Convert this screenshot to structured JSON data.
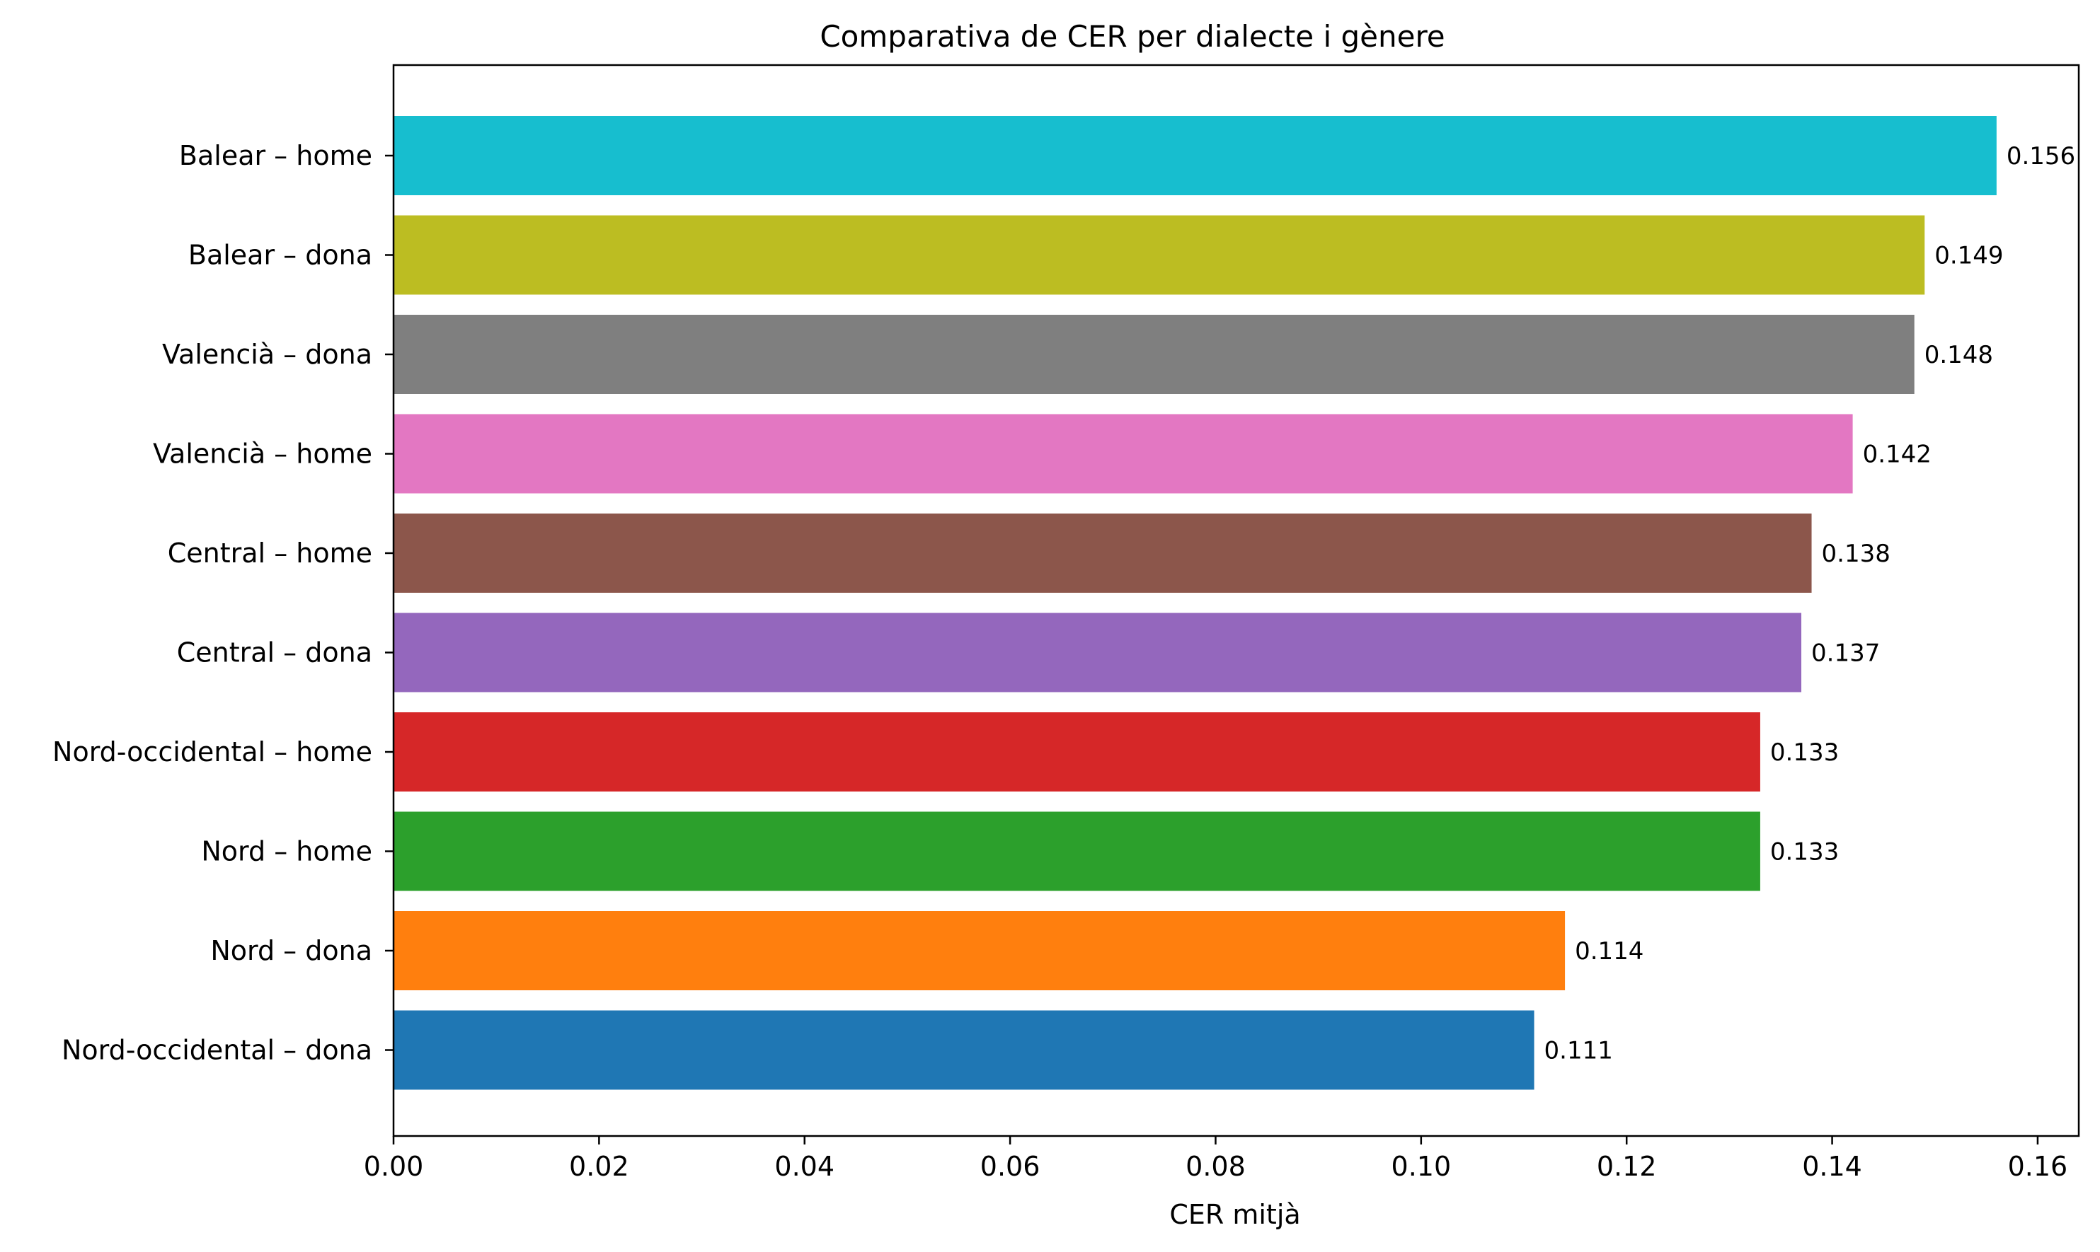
{
  "chart_data": {
    "type": "bar",
    "orientation": "horizontal",
    "title": "Comparativa de CER per dialecte i gènere",
    "xlabel": "CER mitjà",
    "ylabel": "",
    "xlim": [
      0,
      0.164
    ],
    "xticks": [
      0.0,
      0.02,
      0.04,
      0.06,
      0.08,
      0.1,
      0.12,
      0.14,
      0.16
    ],
    "xtick_labels": [
      "0.00",
      "0.02",
      "0.04",
      "0.06",
      "0.08",
      "0.10",
      "0.12",
      "0.14",
      "0.16"
    ],
    "grid": false,
    "legend": "none",
    "categories": [
      "Balear – home",
      "Balear – dona",
      "Valencià – dona",
      "Valencià – home",
      "Central – home",
      "Central – dona",
      "Nord-occidental – home",
      "Nord – home",
      "Nord – dona",
      "Nord-occidental – dona"
    ],
    "values": [
      0.156,
      0.149,
      0.148,
      0.142,
      0.138,
      0.137,
      0.133,
      0.133,
      0.114,
      0.111
    ],
    "value_labels": [
      "0.156",
      "0.149",
      "0.148",
      "0.142",
      "0.138",
      "0.137",
      "0.133",
      "0.133",
      "0.114",
      "0.111"
    ],
    "colors": [
      "#17becf",
      "#bcbd22",
      "#7f7f7f",
      "#e377c2",
      "#8c564b",
      "#9467bd",
      "#d62728",
      "#2ca02c",
      "#ff7f0e",
      "#1f77b4"
    ]
  }
}
